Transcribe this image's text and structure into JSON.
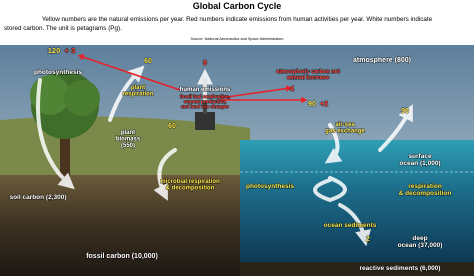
{
  "header": {
    "title": "Global Carbon Cycle",
    "subtitle": [
      "Yellow numbers are the natural emissions per year. Red numbers indicate emissions from human activities per year. White numbers indicate",
      "stored carbon. The unit is petagrams (Pg)."
    ],
    "source": "Source: National Aeronautics and Space Administration"
  },
  "labels": [
    [
      "120"
    ],
    [
      "+ 3"
    ],
    [
      "photosynthesis"
    ],
    [
      "60"
    ],
    [
      "plant",
      "respiration"
    ],
    [
      "9"
    ],
    [
      "human emissions"
    ],
    [
      "fossil fuel combustion,",
      "cement production,",
      "and land use changes"
    ],
    [
      "atmospheric carbon net",
      "annual increase"
    ],
    [
      "4"
    ],
    [
      "atmosphere (800)"
    ],
    [
      "90"
    ],
    [
      "+2"
    ],
    [
      "90"
    ],
    [
      "air-sea",
      "gas exchange"
    ],
    [
      "plant",
      "biomass",
      "(550)"
    ],
    [
      "60"
    ],
    [
      "microbial respiration",
      "& decomposition"
    ],
    [
      "soil carbon (2,300)"
    ],
    [
      "surface",
      "ocean (1,000)"
    ],
    [
      "photosynthesis"
    ],
    [
      "respiration",
      "& decomposition"
    ],
    [
      "ocean sediments"
    ],
    [
      "2"
    ],
    [
      "deep",
      "ocean (37,000)"
    ],
    [
      "fossil carbon (10,000)"
    ],
    [
      "reactive sediments (6,000)"
    ]
  ]
}
